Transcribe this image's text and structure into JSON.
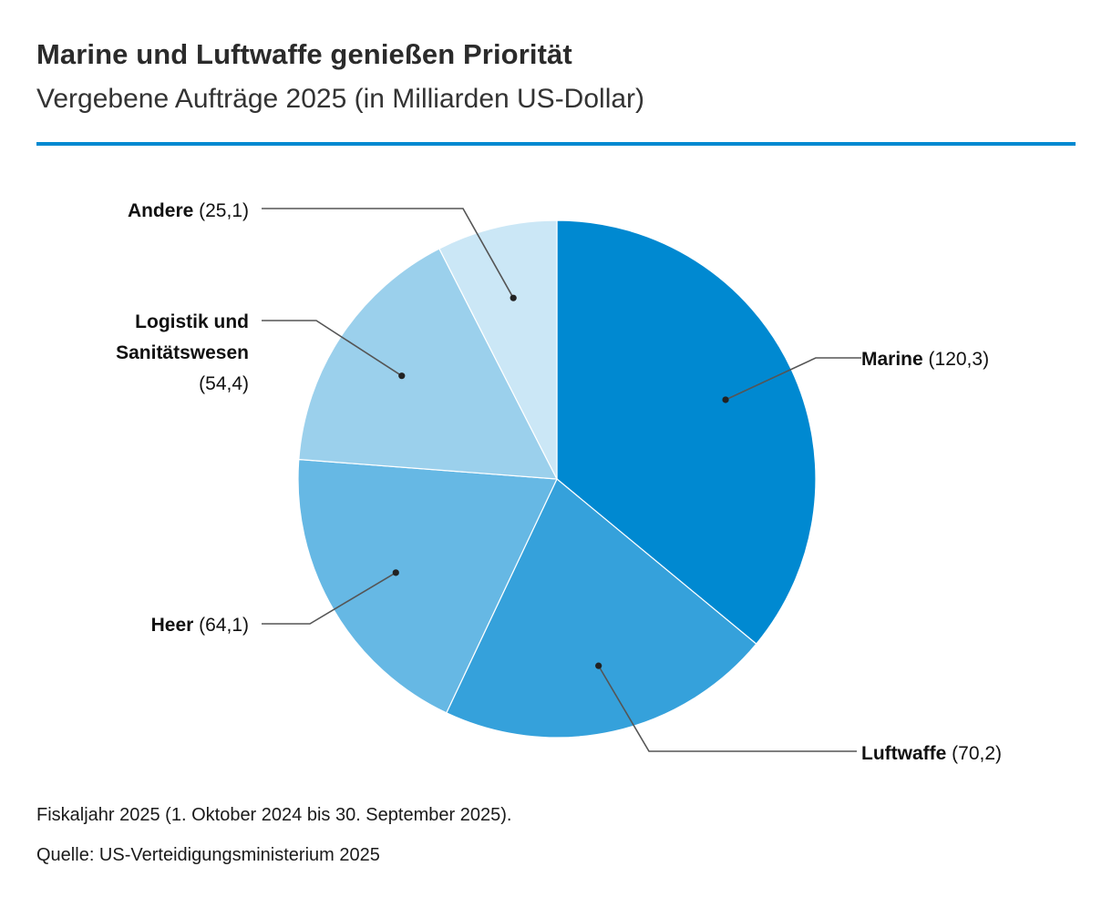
{
  "colors": {
    "rule": "#0089d1",
    "leader": "#555555"
  },
  "chart_data": {
    "type": "pie",
    "title": "Marine und Luftwaffe genießen Priorität",
    "subtitle": "Vergebene Aufträge 2025 (in Milliarden US-Dollar)",
    "slices": [
      {
        "name": "Marine",
        "value": 120.3,
        "value_label": "(120,3)",
        "color": "#0089d1"
      },
      {
        "name": "Luftwaffe",
        "value": 70.2,
        "value_label": "(70,2)",
        "color": "#35a1db"
      },
      {
        "name": "Heer",
        "value": 64.1,
        "value_label": "(64,1)",
        "color": "#66b8e4"
      },
      {
        "name": "Logistik und Sanitätswesen",
        "name_lines": [
          "Logistik und",
          "Sanitätswesen"
        ],
        "value": 54.4,
        "value_label": "(54,4)",
        "color": "#9bd0ec"
      },
      {
        "name": "Andere",
        "value": 25.1,
        "value_label": "(25,1)",
        "color": "#cbe7f6"
      }
    ]
  },
  "footer": {
    "note": "Fiskaljahr 2025 (1. Oktober 2024 bis 30. September 2025).",
    "source": "Quelle: US-Verteidigungsministerium 2025"
  }
}
